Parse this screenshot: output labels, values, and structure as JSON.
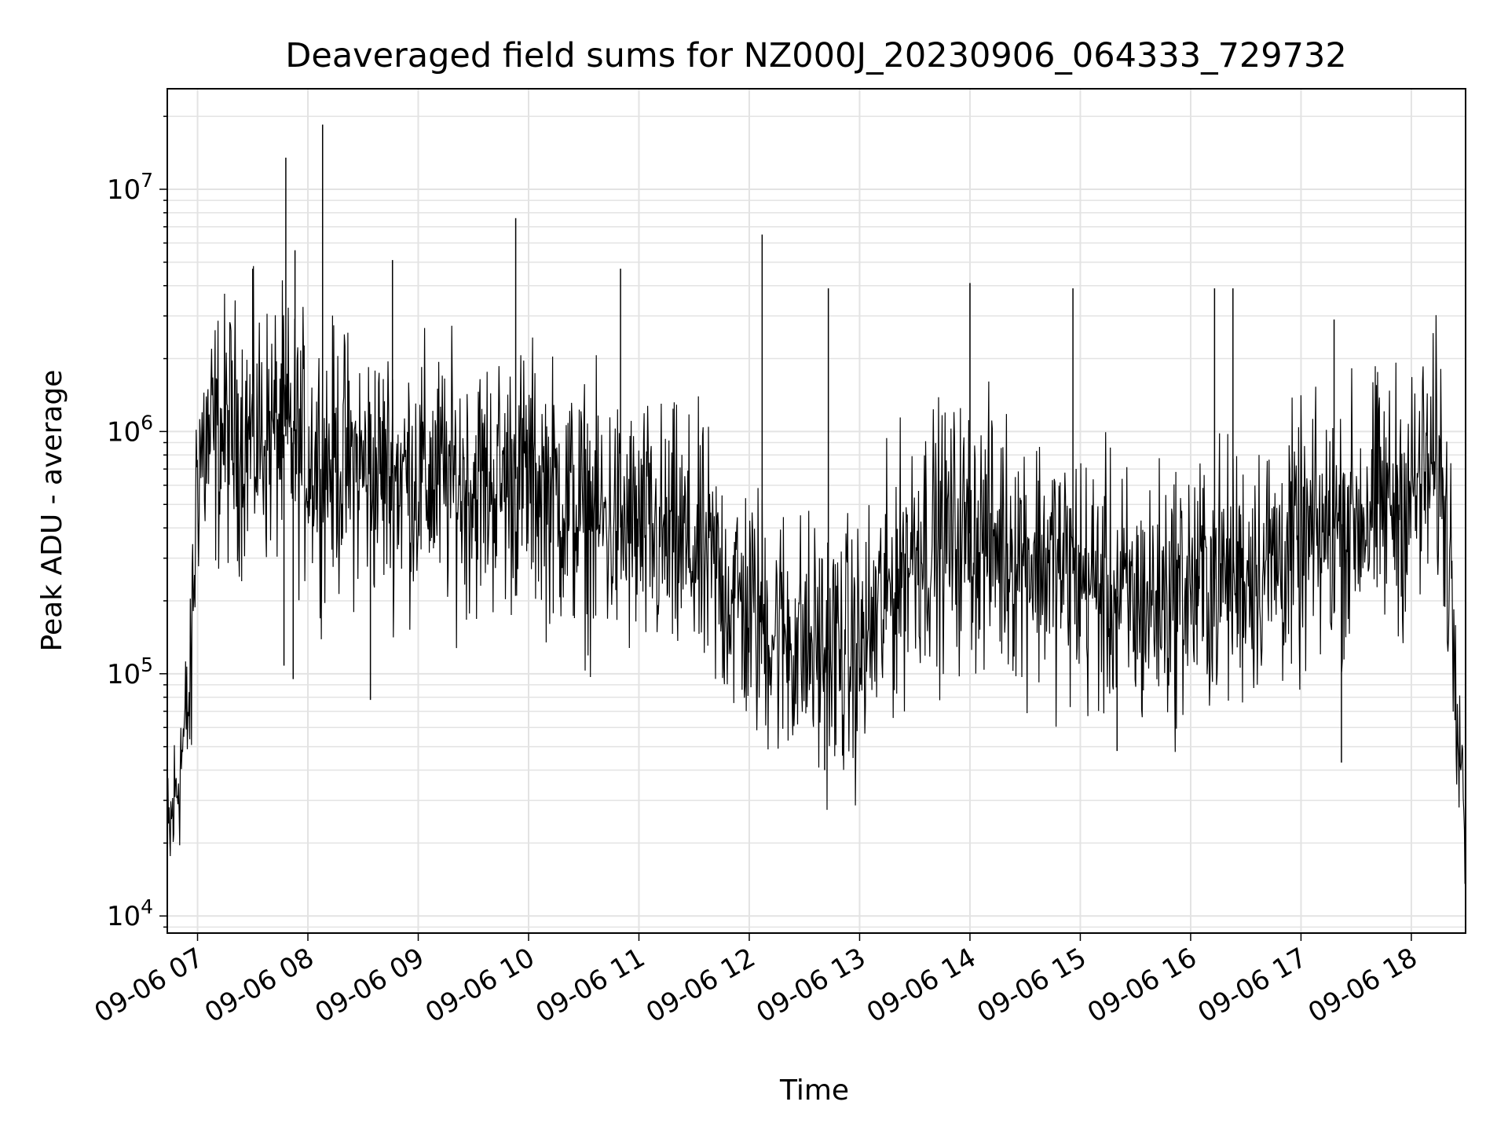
{
  "chart_data": {
    "type": "line",
    "title": "Deaveraged field sums for NZ000J_20230906_064333_729732",
    "xlabel": "Time",
    "ylabel": "Peak ADU - average",
    "yscale": "log",
    "ylim": [
      8500,
      26000000
    ],
    "xlim": [
      "2023-09-06 06:43:33",
      "2023-09-06 18:29:30"
    ],
    "grid": true,
    "line_color": "#000000",
    "x_ticks": [
      "09-06 07",
      "09-06 08",
      "09-06 09",
      "09-06 10",
      "09-06 11",
      "09-06 12",
      "09-06 13",
      "09-06 14",
      "09-06 15",
      "09-06 16",
      "09-06 17",
      "09-06 18"
    ],
    "y_ticks": [
      {
        "value": 10000,
        "base": "10",
        "exp": "4"
      },
      {
        "value": 100000,
        "base": "10",
        "exp": "5"
      },
      {
        "value": 1000000,
        "base": "10",
        "exp": "6"
      },
      {
        "value": 10000000,
        "base": "10",
        "exp": "7"
      }
    ],
    "series": [
      {
        "x": [
          "2023-09-06 06:43:33",
          "2023-09-06 06:50:00",
          "2023-09-06 06:56:00",
          "2023-09-06 07:00:00",
          "2023-09-06 07:15:00",
          "2023-09-06 07:30:00",
          "2023-09-06 07:45:00",
          "2023-09-06 08:00:00",
          "2023-09-06 08:30:00",
          "2023-09-06 09:00:00",
          "2023-09-06 09:30:00",
          "2023-09-06 10:00:00",
          "2023-09-06 10:30:00",
          "2023-09-06 11:00:00",
          "2023-09-06 11:30:00",
          "2023-09-06 12:00:00",
          "2023-09-06 12:30:00",
          "2023-09-06 13:00:00",
          "2023-09-06 13:30:00",
          "2023-09-06 14:00:00",
          "2023-09-06 14:30:00",
          "2023-09-06 15:00:00",
          "2023-09-06 15:30:00",
          "2023-09-06 16:00:00",
          "2023-09-06 16:30:00",
          "2023-09-06 17:00:00",
          "2023-09-06 17:30:00",
          "2023-09-06 18:00:00",
          "2023-09-06 18:15:00",
          "2023-09-06 18:22:00",
          "2023-09-06 18:29:30"
        ],
        "y": [
          18000,
          40000,
          80000,
          800000,
          1000000,
          950000,
          1000000,
          800000,
          700000,
          650000,
          600000,
          650000,
          450000,
          380000,
          320000,
          180000,
          130000,
          120000,
          350000,
          380000,
          320000,
          250000,
          190000,
          230000,
          270000,
          330000,
          450000,
          550000,
          750000,
          250000,
          25000
        ],
        "spikes": [
          {
            "x": "2023-09-06 07:30:00",
            "y": 4700000
          },
          {
            "x": "2023-09-06 07:48:00",
            "y": 13500000
          },
          {
            "x": "2023-09-06 07:53:00",
            "y": 5600000
          },
          {
            "x": "2023-09-06 08:08:00",
            "y": 18500000
          },
          {
            "x": "2023-09-06 08:46:00",
            "y": 5100000
          },
          {
            "x": "2023-09-06 09:53:00",
            "y": 7600000
          },
          {
            "x": "2023-09-06 10:50:00",
            "y": 4700000
          },
          {
            "x": "2023-09-06 12:07:00",
            "y": 6500000
          },
          {
            "x": "2023-09-06 12:43:00",
            "y": 3900000
          },
          {
            "x": "2023-09-06 14:00:00",
            "y": 4100000
          },
          {
            "x": "2023-09-06 14:56:00",
            "y": 3900000
          },
          {
            "x": "2023-09-06 16:13:00",
            "y": 3900000
          },
          {
            "x": "2023-09-06 16:23:00",
            "y": 3900000
          },
          {
            "x": "2023-09-06 17:18:00",
            "y": 2900000
          },
          {
            "x": "2023-09-06 12:41:00",
            "y": 40000
          },
          {
            "x": "2023-09-06 17:22:00",
            "y": 43000
          },
          {
            "x": "2023-09-06 07:47:00",
            "y": 108000
          },
          {
            "x": "2023-09-06 07:52:00",
            "y": 95000
          },
          {
            "x": "2023-09-06 08:34:00",
            "y": 78000
          },
          {
            "x": "2023-09-06 15:20:00",
            "y": 48000
          }
        ]
      }
    ]
  }
}
